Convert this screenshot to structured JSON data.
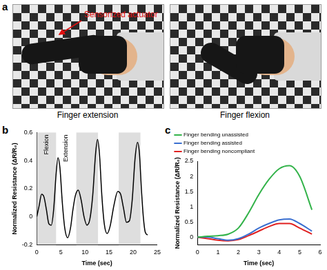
{
  "panel_a": {
    "label": "a",
    "annotation": "Sensorized actuator",
    "captions": [
      "Finger extension",
      "Finger flexion"
    ]
  },
  "chart_data": [
    {
      "panel": "b",
      "type": "line",
      "x_label": "Time (sec)",
      "y_label": "Normalized Resistance (ΔR/R₀)",
      "x": [
        0,
        0.5,
        1,
        1.5,
        2,
        2.5,
        3,
        3.5,
        4,
        4.4,
        4.8,
        5.3,
        5.8,
        6.4,
        7,
        7.5,
        8,
        8.6,
        9.2,
        9.8,
        10.4,
        11,
        11.6,
        12.2,
        12.6,
        13,
        13.5,
        14,
        14.6,
        15.2,
        16,
        16.8,
        17.4,
        18,
        18.6,
        19.2,
        19.8,
        20.4,
        20.9,
        21.3,
        21.7,
        22.1,
        22.5,
        23
      ],
      "series": [
        {
          "color": "#000000",
          "values": [
            0,
            0.08,
            0.16,
            0.14,
            0.05,
            -0.05,
            -0.06,
            0.05,
            0.3,
            0.42,
            0.35,
            0.1,
            -0.08,
            -0.15,
            -0.08,
            0.05,
            0.15,
            0.19,
            0.12,
            0,
            -0.06,
            -0.02,
            0.15,
            0.45,
            0.55,
            0.45,
            0.15,
            -0.05,
            -0.12,
            -0.07,
            0.08,
            0.18,
            0.16,
            0.06,
            -0.04,
            -0.03,
            0.12,
            0.42,
            0.53,
            0.45,
            0.2,
            0,
            -0.11,
            -0.13
          ]
        }
      ],
      "flexion_intervals": [
        [
          0,
          4
        ],
        [
          8.2,
          12.7
        ],
        [
          17,
          21.5
        ]
      ],
      "annotations": [
        "Flexion",
        "Extension"
      ],
      "xlim": [
        0,
        25
      ],
      "xticks": [
        0,
        5,
        10,
        15,
        20,
        25
      ],
      "ylim": [
        -0.2,
        0.6
      ],
      "yticks": [
        -0.2,
        0,
        0.2,
        0.4,
        0.6
      ],
      "grid": false
    },
    {
      "panel": "c",
      "type": "line",
      "x_label": "Time (sec)",
      "y_label": "Normalized Resistance (ΔR/R₀)",
      "x": [
        0,
        0.5,
        1,
        1.5,
        2,
        2.5,
        3,
        3.5,
        4,
        4.5,
        5,
        5.6
      ],
      "series": [
        {
          "name": "Finger bending unassisted",
          "color": "#33b34a",
          "values": [
            0,
            0.03,
            0.05,
            0.1,
            0.3,
            0.8,
            1.4,
            1.9,
            2.25,
            2.35,
            2.0,
            0.9
          ]
        },
        {
          "name": "Finger bending assisted",
          "color": "#3a6fd0",
          "values": [
            0,
            0,
            -0.05,
            -0.1,
            -0.05,
            0.1,
            0.3,
            0.45,
            0.57,
            0.6,
            0.45,
            0.2
          ]
        },
        {
          "name": "Finger bending noncompliant",
          "color": "#e02020",
          "values": [
            0,
            -0.05,
            -0.1,
            -0.12,
            -0.08,
            0.05,
            0.2,
            0.35,
            0.45,
            0.45,
            0.3,
            0.1
          ]
        }
      ],
      "xlim": [
        0,
        6
      ],
      "xticks": [
        0,
        1,
        2,
        3,
        4,
        5,
        6
      ],
      "ylim": [
        -0.25,
        2.5
      ],
      "yticks": [
        0,
        0.5,
        1,
        1.5,
        2,
        2.5
      ],
      "legend": "upper left",
      "grid": false
    }
  ]
}
